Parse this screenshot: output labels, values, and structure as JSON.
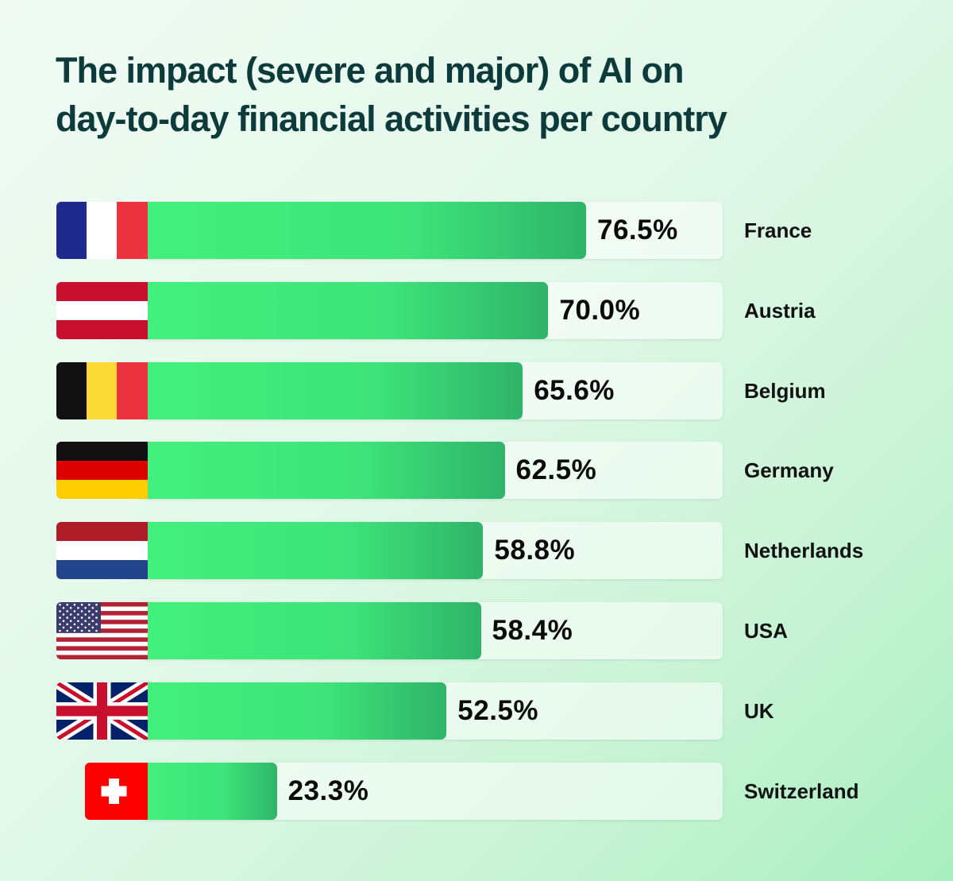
{
  "title": {
    "line1": "The impact (severe and major) of AI on",
    "line2": "day-to-day financial activities per country"
  },
  "colors": {
    "bar_start": "#43f07c",
    "bar_end": "#2fb46a",
    "title": "#0d3a3a"
  },
  "chart_data": {
    "type": "bar",
    "orientation": "horizontal",
    "title": "The impact (severe and major) of AI on day-to-day financial activities per country",
    "categories": [
      "France",
      "Austria",
      "Belgium",
      "Germany",
      "Netherlands",
      "USA",
      "UK",
      "Switzerland"
    ],
    "values": [
      76.5,
      70.0,
      65.6,
      62.5,
      58.8,
      58.4,
      52.5,
      23.3
    ],
    "value_labels": [
      "76.5%",
      "70.0%",
      "65.6%",
      "62.5%",
      "58.8%",
      "58.4%",
      "52.5%",
      "23.3%"
    ],
    "flag_icons": [
      "france-flag-icon",
      "austria-flag-icon",
      "belgium-flag-icon",
      "germany-flag-icon",
      "netherlands-flag-icon",
      "usa-flag-icon",
      "uk-flag-icon",
      "switzerland-flag-icon"
    ],
    "xlim": [
      0,
      100
    ],
    "grid": false,
    "legend": "none"
  }
}
